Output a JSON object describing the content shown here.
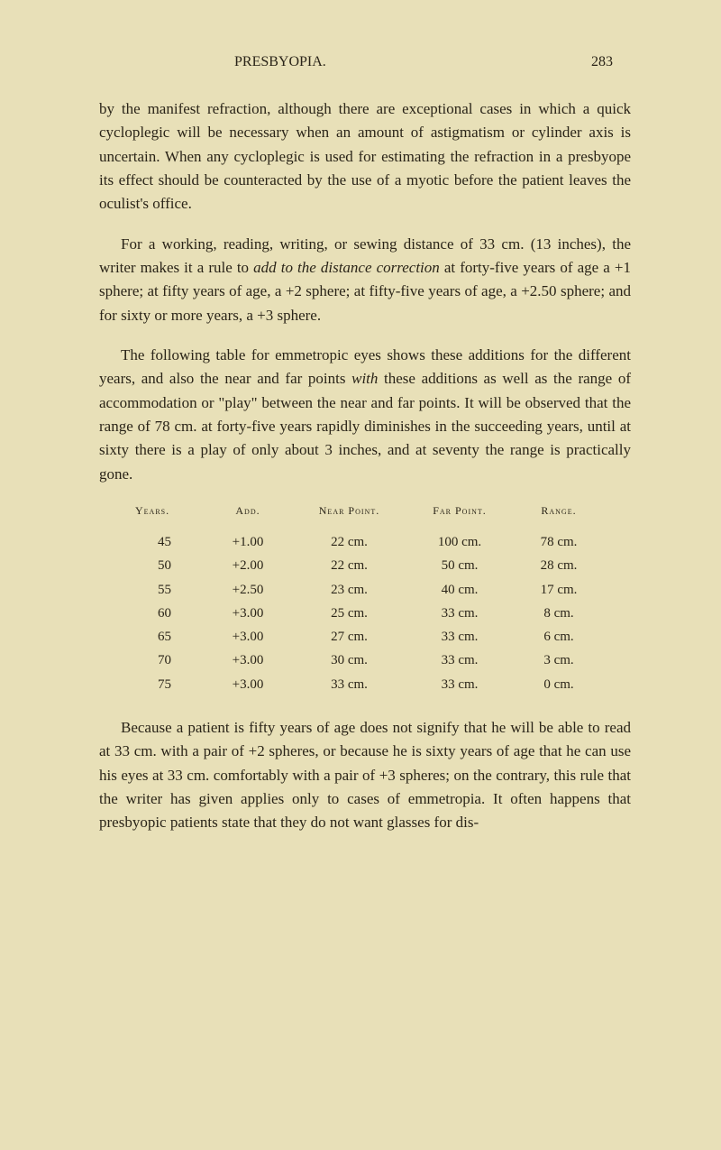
{
  "header": {
    "title": "PRESBYOPIA.",
    "pageNumber": "283"
  },
  "paragraphs": {
    "p1": "by the manifest refraction, although there are exceptional cases in which a quick cycloplegic will be necessary when an amount of astigmatism or cylinder axis is uncertain. When any cycloplegic is used for estimating the refraction in a presbyope its effect should be counteracted by the use of a myotic before the patient leaves the oculist's office.",
    "p2_part1": "For a working, reading, writing, or sewing distance of 33 cm. (13 inches), the writer makes it a rule to ",
    "p2_italic1": "add to the distance correction",
    "p2_part2": " at forty-five years of age a +1 sphere; at fifty years of age, a +2 sphere; at fifty-five years of age, a +2.50 sphere; and for sixty or more years, a +3 sphere.",
    "p3_part1": "The following table for emmetropic eyes shows these additions for the different years, and also the near and far points ",
    "p3_italic1": "with",
    "p3_part2": " these additions as well as the range of accommodation or \"play\" between the near and far points. It will be observed that the range of 78 cm. at forty-five years rapidly diminishes in the succeeding years, until at sixty there is a play of only about 3 inches, and at seventy the range is practically gone.",
    "p4": "Because a patient is fifty years of age does not signify that he will be able to read at 33 cm. with a pair of +2 spheres, or because he is sixty years of age that he can use his eyes at 33 cm. comfortably with a pair of +3 spheres; on the contrary, this rule that the writer has given applies only to cases of emmetropia. It often happens that presbyopic patients state that they do not want glasses for dis-"
  },
  "table": {
    "headers": {
      "years": "Years.",
      "add": "Add.",
      "near": "Near Point.",
      "far": "Far Point.",
      "range": "Range."
    },
    "rows": [
      {
        "years": "45",
        "add": "+1.00",
        "near": "22 cm.",
        "far": "100 cm.",
        "range": "78 cm."
      },
      {
        "years": "50",
        "add": "+2.00",
        "near": "22 cm.",
        "far": "50 cm.",
        "range": "28 cm."
      },
      {
        "years": "55",
        "add": "+2.50",
        "near": "23 cm.",
        "far": "40 cm.",
        "range": "17 cm."
      },
      {
        "years": "60",
        "add": "+3.00",
        "near": "25 cm.",
        "far": "33 cm.",
        "range": "8 cm."
      },
      {
        "years": "65",
        "add": "+3.00",
        "near": "27 cm.",
        "far": "33 cm.",
        "range": "6 cm."
      },
      {
        "years": "70",
        "add": "+3.00",
        "near": "30 cm.",
        "far": "33 cm.",
        "range": "3 cm."
      },
      {
        "years": "75",
        "add": "+3.00",
        "near": "33 cm.",
        "far": "33 cm.",
        "range": "0 cm."
      }
    ]
  },
  "styling": {
    "backgroundColor": "#e8e0b8",
    "textColor": "#2a2418",
    "bodyFontSize": 17,
    "headerFontSize": 14,
    "tableHeaderFontSize": 12,
    "tableRowFontSize": 15,
    "lineHeight": 1.55
  }
}
